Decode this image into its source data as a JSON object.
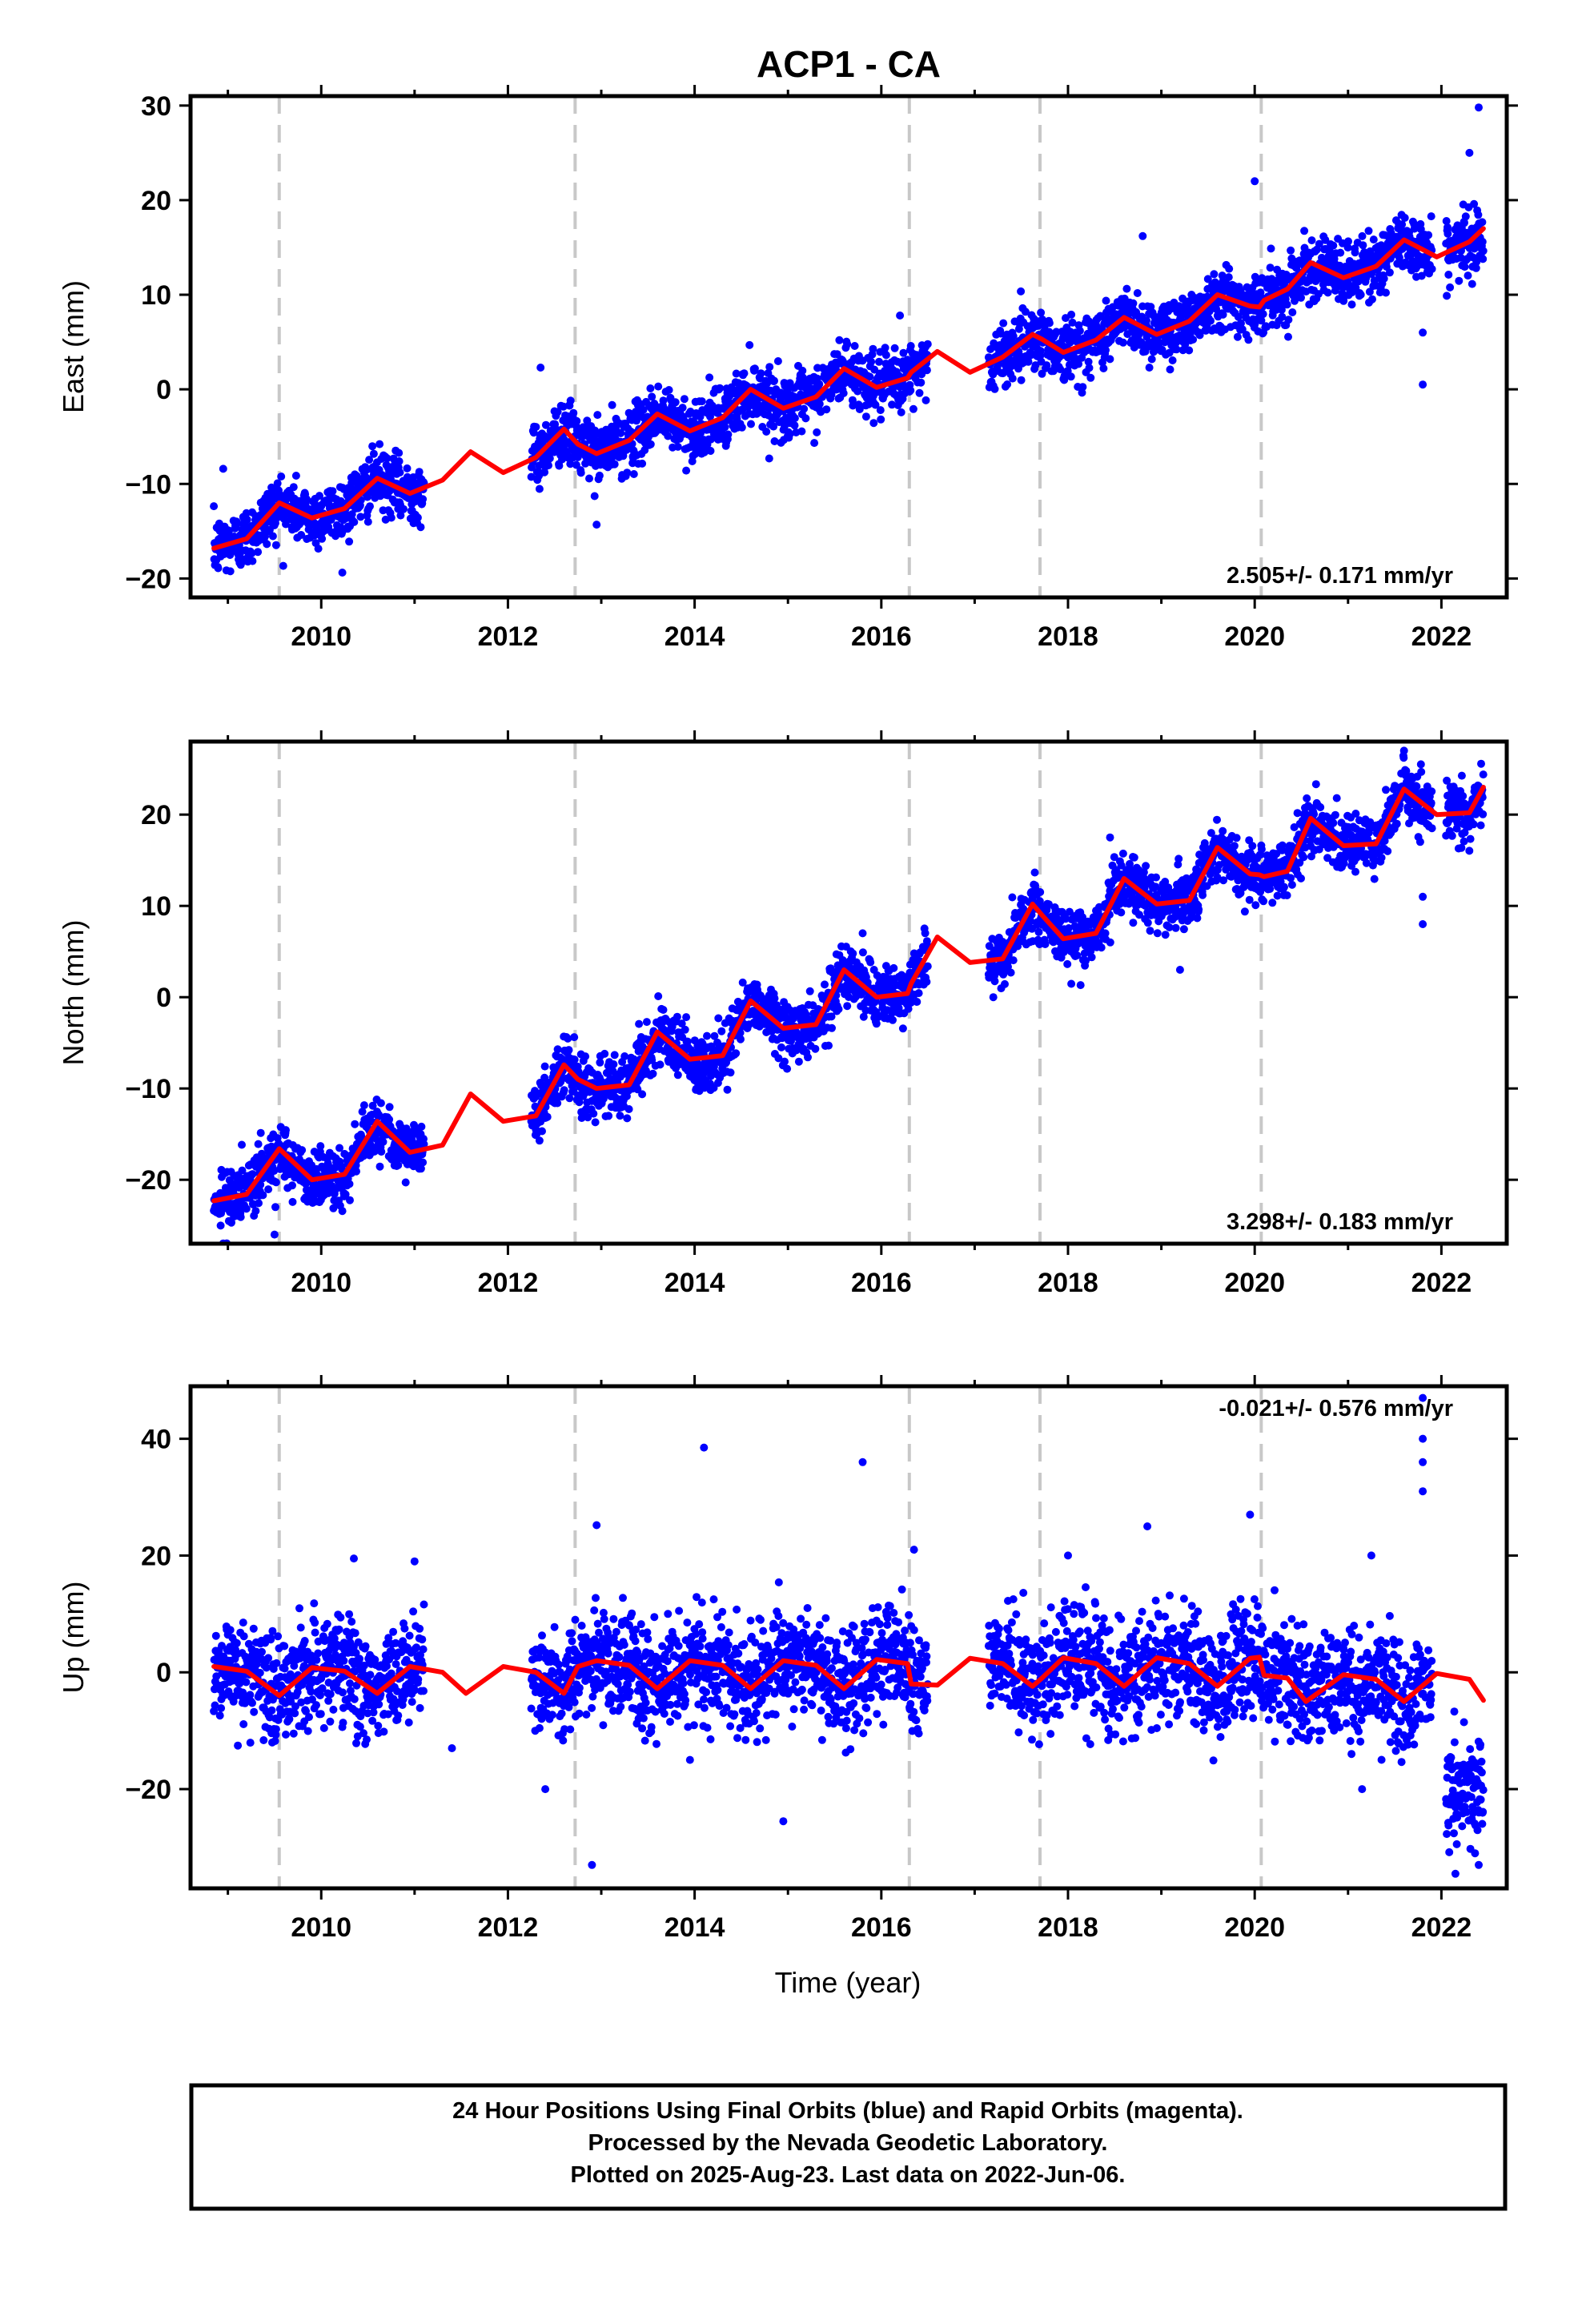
{
  "title": "ACP1 - CA",
  "xlabel": "Time (year)",
  "footer": {
    "line1": "24 Hour Positions Using Final Orbits (blue) and Rapid Orbits (magenta).",
    "line2": "Processed by the Nevada Geodetic Laboratory.",
    "line3": "Plotted on 2025-Aug-23. Last data on 2022-Jun-06."
  },
  "colors": {
    "final_orbits": "#0000ff",
    "model": "#ff0000",
    "steps": "#c8c8c8",
    "frame": "#000000"
  },
  "chart_data": [
    {
      "type": "scatter",
      "name": "east",
      "ylabel": "East (mm)",
      "xlim": [
        2008.6,
        2022.7
      ],
      "ylim": [
        -22,
        31
      ],
      "yticks": [
        -20,
        -10,
        0,
        10,
        20,
        30
      ],
      "xticks": [
        2010,
        2012,
        2014,
        2016,
        2018,
        2020,
        2022
      ],
      "rate_label": "2.505+/- 0.171 mm/yr",
      "rate": 2.505,
      "intercept_at_2009": -16.3,
      "annual_amplitude": 1.4,
      "noise_sd": 1.6,
      "step_epochs": [
        2009.55,
        2012.72,
        2016.3,
        2017.7,
        2020.07
      ],
      "data_segments": [
        [
          2008.85,
          2011.1
        ],
        [
          2012.25,
          2016.5
        ],
        [
          2017.15,
          2021.9
        ],
        [
          2022.05,
          2022.45
        ]
      ],
      "outliers": [
        [
          2022.4,
          29.8
        ],
        [
          2020.0,
          22.0
        ],
        [
          2018.8,
          16.2
        ],
        [
          2012.35,
          2.3
        ],
        [
          2012.95,
          -14.3
        ],
        [
          2008.95,
          -8.4
        ],
        [
          2016.2,
          7.8
        ],
        [
          2021.8,
          6.0
        ],
        [
          2021.8,
          0.5
        ],
        [
          2022.3,
          25.0
        ]
      ],
      "model": [
        [
          2008.85,
          -16.8
        ],
        [
          2009.2,
          -15.8
        ],
        [
          2009.55,
          -12.0
        ],
        [
          2009.9,
          -13.6
        ],
        [
          2010.25,
          -12.6
        ],
        [
          2010.6,
          -9.4
        ],
        [
          2010.95,
          -11.0
        ],
        [
          2011.3,
          -9.6
        ],
        [
          2011.6,
          -6.6
        ],
        [
          2011.95,
          -8.8
        ],
        [
          2012.3,
          -7.2
        ],
        [
          2012.6,
          -4.2
        ],
        [
          2012.75,
          -5.8
        ],
        [
          2012.95,
          -6.8
        ],
        [
          2013.3,
          -5.4
        ],
        [
          2013.6,
          -2.6
        ],
        [
          2013.95,
          -4.4
        ],
        [
          2014.3,
          -3.0
        ],
        [
          2014.6,
          0.0
        ],
        [
          2014.95,
          -2.0
        ],
        [
          2015.3,
          -0.8
        ],
        [
          2015.6,
          2.2
        ],
        [
          2015.95,
          0.2
        ],
        [
          2016.28,
          1.2
        ],
        [
          2016.32,
          1.8
        ],
        [
          2016.6,
          4.0
        ],
        [
          2016.95,
          1.8
        ],
        [
          2017.3,
          3.4
        ],
        [
          2017.62,
          5.8
        ],
        [
          2017.72,
          5.3
        ],
        [
          2017.95,
          3.9
        ],
        [
          2018.3,
          5.2
        ],
        [
          2018.6,
          7.6
        ],
        [
          2018.95,
          5.8
        ],
        [
          2019.3,
          7.2
        ],
        [
          2019.6,
          10.0
        ],
        [
          2019.95,
          8.8
        ],
        [
          2020.05,
          8.7
        ],
        [
          2020.1,
          9.4
        ],
        [
          2020.35,
          10.6
        ],
        [
          2020.6,
          13.4
        ],
        [
          2020.95,
          11.8
        ],
        [
          2021.3,
          13.0
        ],
        [
          2021.6,
          15.8
        ],
        [
          2021.95,
          14.0
        ],
        [
          2022.3,
          15.6
        ],
        [
          2022.45,
          17.0
        ]
      ]
    },
    {
      "type": "scatter",
      "name": "north",
      "ylabel": "North (mm)",
      "xlim": [
        2008.6,
        2022.7
      ],
      "ylim": [
        -27,
        28
      ],
      "yticks": [
        -20,
        -10,
        0,
        10,
        20
      ],
      "xticks": [
        2010,
        2012,
        2014,
        2016,
        2018,
        2020,
        2022
      ],
      "rate_label": "3.298+/- 0.183 mm/yr",
      "rate": 3.298,
      "intercept_at_2009": -22.0,
      "annual_amplitude": 2.6,
      "noise_sd": 1.6,
      "step_epochs": [
        2009.55,
        2012.72,
        2016.3,
        2017.7,
        2020.07
      ],
      "data_segments": [
        [
          2008.85,
          2011.1
        ],
        [
          2012.25,
          2016.5
        ],
        [
          2017.15,
          2021.9
        ],
        [
          2022.05,
          2022.45
        ]
      ],
      "outliers": [
        [
          2021.8,
          8.0
        ],
        [
          2021.8,
          11.0
        ],
        [
          2019.2,
          3.0
        ],
        [
          2017.2,
          0.0
        ],
        [
          2012.3,
          -14.5
        ],
        [
          2015.8,
          7.0
        ],
        [
          2018.45,
          17.5
        ],
        [
          2021.6,
          27.0
        ],
        [
          2009.5,
          -26.0
        ]
      ],
      "model": [
        [
          2008.85,
          -22.3
        ],
        [
          2009.2,
          -21.6
        ],
        [
          2009.55,
          -16.6
        ],
        [
          2009.9,
          -20.0
        ],
        [
          2010.25,
          -19.4
        ],
        [
          2010.6,
          -13.6
        ],
        [
          2010.95,
          -17.0
        ],
        [
          2011.3,
          -16.2
        ],
        [
          2011.6,
          -10.6
        ],
        [
          2011.95,
          -13.6
        ],
        [
          2012.3,
          -13.0
        ],
        [
          2012.6,
          -7.4
        ],
        [
          2012.75,
          -9.0
        ],
        [
          2012.95,
          -10.0
        ],
        [
          2013.3,
          -9.6
        ],
        [
          2013.6,
          -3.8
        ],
        [
          2013.95,
          -6.8
        ],
        [
          2014.3,
          -6.4
        ],
        [
          2014.6,
          -0.4
        ],
        [
          2014.95,
          -3.4
        ],
        [
          2015.3,
          -3.0
        ],
        [
          2015.6,
          3.0
        ],
        [
          2015.95,
          0.0
        ],
        [
          2016.28,
          0.4
        ],
        [
          2016.32,
          1.5
        ],
        [
          2016.6,
          6.6
        ],
        [
          2016.95,
          3.8
        ],
        [
          2017.3,
          4.2
        ],
        [
          2017.62,
          10.2
        ],
        [
          2017.72,
          9.0
        ],
        [
          2017.95,
          6.4
        ],
        [
          2018.3,
          7.0
        ],
        [
          2018.6,
          13.0
        ],
        [
          2018.95,
          10.2
        ],
        [
          2019.3,
          10.6
        ],
        [
          2019.6,
          16.4
        ],
        [
          2019.95,
          13.5
        ],
        [
          2020.05,
          13.4
        ],
        [
          2020.1,
          13.2
        ],
        [
          2020.35,
          13.8
        ],
        [
          2020.6,
          19.6
        ],
        [
          2020.95,
          16.6
        ],
        [
          2021.3,
          16.8
        ],
        [
          2021.6,
          22.8
        ],
        [
          2021.95,
          20.0
        ],
        [
          2022.3,
          20.2
        ],
        [
          2022.45,
          23.0
        ]
      ]
    },
    {
      "type": "scatter",
      "name": "up",
      "ylabel": "Up (mm)",
      "xlim": [
        2008.6,
        2022.7
      ],
      "ylim": [
        -37,
        49
      ],
      "yticks": [
        -20,
        0,
        20,
        40
      ],
      "xticks": [
        2010,
        2012,
        2014,
        2016,
        2018,
        2020,
        2022
      ],
      "rate_label": "-0.021+/- 0.576 mm/yr",
      "rate": -0.021,
      "intercept_at_2009": 0.0,
      "annual_amplitude": 3.0,
      "noise_sd": 4.6,
      "step_epochs": [
        2009.55,
        2012.72,
        2016.3,
        2017.7,
        2020.07
      ],
      "data_segments": [
        [
          2008.85,
          2011.1
        ],
        [
          2012.25,
          2016.5
        ],
        [
          2017.15,
          2021.9
        ],
        [
          2022.05,
          2022.45
        ]
      ],
      "outliers": [
        [
          2014.1,
          38.5
        ],
        [
          2015.8,
          36.0
        ],
        [
          2012.95,
          25.2
        ],
        [
          2019.95,
          27.0
        ],
        [
          2018.85,
          25.0
        ],
        [
          2021.8,
          47.0
        ],
        [
          2021.8,
          40.0
        ],
        [
          2021.8,
          36.0
        ],
        [
          2021.8,
          31.0
        ],
        [
          2012.9,
          -33.0
        ],
        [
          2014.95,
          -25.5
        ],
        [
          2010.35,
          19.5
        ],
        [
          2011.0,
          19.0
        ],
        [
          2016.35,
          21.0
        ],
        [
          2018.0,
          20.0
        ],
        [
          2021.25,
          20.0
        ],
        [
          2012.4,
          -20.0
        ],
        [
          2021.15,
          -20.0
        ],
        [
          2022.15,
          -34.5
        ],
        [
          2022.4,
          -33.0
        ],
        [
          2011.4,
          -13.0
        ],
        [
          2013.95,
          -15.0
        ]
      ],
      "late_cluster": {
        "start": 2022.05,
        "end": 2022.45,
        "center": -20.0,
        "sd": 4.5
      },
      "model": [
        [
          2008.85,
          1.0
        ],
        [
          2009.2,
          0.2
        ],
        [
          2009.55,
          -4.0
        ],
        [
          2009.9,
          0.8
        ],
        [
          2010.25,
          0.2
        ],
        [
          2010.6,
          -3.6
        ],
        [
          2010.95,
          1.0
        ],
        [
          2011.3,
          0.0
        ],
        [
          2011.55,
          -3.6
        ],
        [
          2011.95,
          1.0
        ],
        [
          2012.3,
          0.0
        ],
        [
          2012.6,
          -3.6
        ],
        [
          2012.75,
          1.0
        ],
        [
          2012.95,
          2.0
        ],
        [
          2013.3,
          1.2
        ],
        [
          2013.6,
          -2.8
        ],
        [
          2013.95,
          2.0
        ],
        [
          2014.3,
          1.2
        ],
        [
          2014.6,
          -2.8
        ],
        [
          2014.95,
          2.0
        ],
        [
          2015.3,
          1.2
        ],
        [
          2015.6,
          -2.8
        ],
        [
          2015.95,
          2.2
        ],
        [
          2016.28,
          1.5
        ],
        [
          2016.32,
          -2.0
        ],
        [
          2016.6,
          -2.2
        ],
        [
          2016.95,
          2.4
        ],
        [
          2017.3,
          1.5
        ],
        [
          2017.62,
          -2.4
        ],
        [
          2017.72,
          -1.0
        ],
        [
          2017.95,
          2.5
        ],
        [
          2018.3,
          1.5
        ],
        [
          2018.6,
          -2.4
        ],
        [
          2018.95,
          2.5
        ],
        [
          2019.3,
          1.5
        ],
        [
          2019.6,
          -2.4
        ],
        [
          2019.95,
          2.4
        ],
        [
          2020.05,
          2.6
        ],
        [
          2020.1,
          -0.5
        ],
        [
          2020.35,
          -1.0
        ],
        [
          2020.55,
          -5.0
        ],
        [
          2020.95,
          -0.4
        ],
        [
          2021.3,
          -1.2
        ],
        [
          2021.6,
          -5.0
        ],
        [
          2021.95,
          -0.2
        ],
        [
          2022.3,
          -1.2
        ],
        [
          2022.45,
          -4.8
        ]
      ]
    }
  ]
}
